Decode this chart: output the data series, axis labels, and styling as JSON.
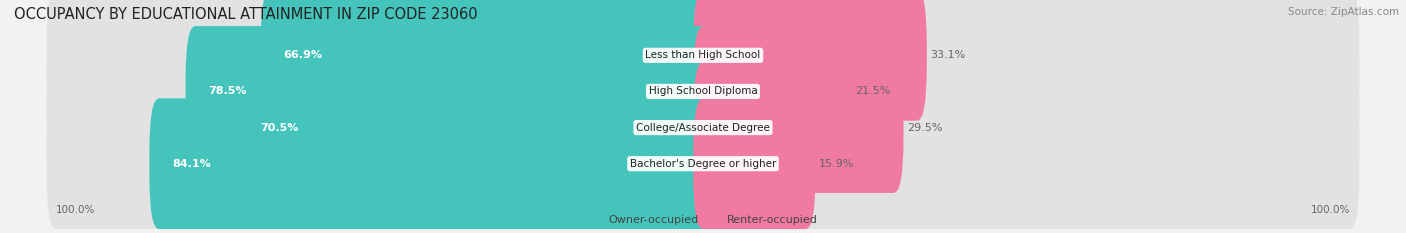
{
  "title": "OCCUPANCY BY EDUCATIONAL ATTAINMENT IN ZIP CODE 23060",
  "source": "Source: ZipAtlas.com",
  "categories": [
    "Less than High School",
    "High School Diploma",
    "College/Associate Degree",
    "Bachelor's Degree or higher"
  ],
  "owner_values": [
    66.9,
    78.5,
    70.5,
    84.1
  ],
  "renter_values": [
    33.1,
    21.5,
    29.5,
    15.9
  ],
  "owner_color": "#45C4BC",
  "renter_color": "#F07AA0",
  "renter_color_light": "#F9B8CD",
  "background_color": "#f2f2f2",
  "bar_background": "#e2e2e2",
  "title_fontsize": 10.5,
  "label_fontsize": 8.0,
  "tick_fontsize": 7.5,
  "source_fontsize": 7.5,
  "legend_fontsize": 8.0,
  "left_label_100": "100.0%",
  "right_label_100": "100.0%"
}
